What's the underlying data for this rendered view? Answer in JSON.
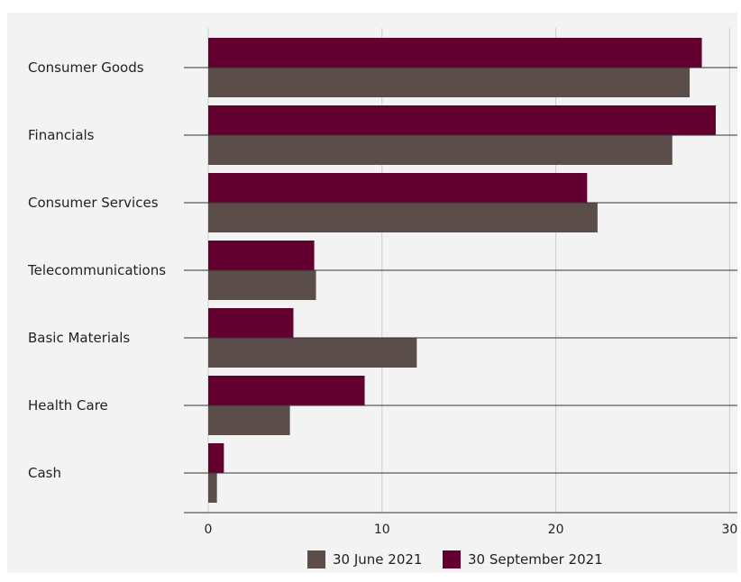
{
  "chart_data": {
    "type": "bar",
    "orientation": "horizontal",
    "categories": [
      "Consumer Goods",
      "Financials",
      "Consumer Services",
      "Telecommunications",
      "Basic Materials",
      "Health Care",
      "Cash"
    ],
    "series": [
      {
        "name": "30 June 2021",
        "color": "#5a4d4a",
        "values": [
          27.7,
          26.7,
          22.4,
          6.2,
          12.0,
          4.7,
          0.5
        ]
      },
      {
        "name": "30 September 2021",
        "color": "#640030",
        "values": [
          28.4,
          29.2,
          21.8,
          6.1,
          4.9,
          9.0,
          0.9
        ]
      }
    ],
    "x_ticks": [
      0,
      10,
      20,
      30
    ],
    "xlim": [
      0,
      30.5
    ],
    "grid": true,
    "legend_position": "bottom",
    "background": "#f3f3f3"
  }
}
